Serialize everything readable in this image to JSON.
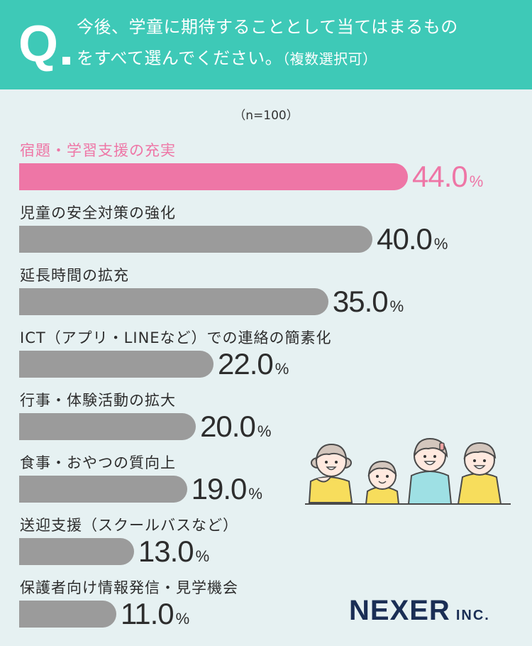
{
  "question": {
    "mark": "Q",
    "line1": "今後、学童に期待することとして当てはまるもの",
    "line2_main": "をすべて選んでください。",
    "line2_note": "（複数選択可）"
  },
  "sample_size": "（n=100）",
  "brand": {
    "name": "NEXER",
    "suffix": "INC."
  },
  "colors": {
    "header": "#3ec9b7",
    "background": "#e6f1f2",
    "highlight": "#ee76a6",
    "bar": "#9b9b9b",
    "logo": "#1a2e55"
  },
  "chart_data": {
    "type": "bar",
    "orientation": "horizontal",
    "unit": "%",
    "xlim": [
      0,
      50
    ],
    "categories": [
      "宿題・学習支援の充実",
      "児童の安全対策の強化",
      "延長時間の拡充",
      "ICT（アプリ・LINEなど）での連絡の簡素化",
      "行事・体験活動の拡大",
      "食事・おやつの質向上",
      "送迎支援（スクールバスなど）",
      "保護者向け情報発信・見学機会"
    ],
    "values": [
      44.0,
      40.0,
      35.0,
      22.0,
      20.0,
      19.0,
      13.0,
      11.0
    ],
    "value_labels": [
      "44.0",
      "40.0",
      "35.0",
      "22.0",
      "20.0",
      "19.0",
      "13.0",
      "11.0"
    ],
    "highlight_index": 0
  }
}
